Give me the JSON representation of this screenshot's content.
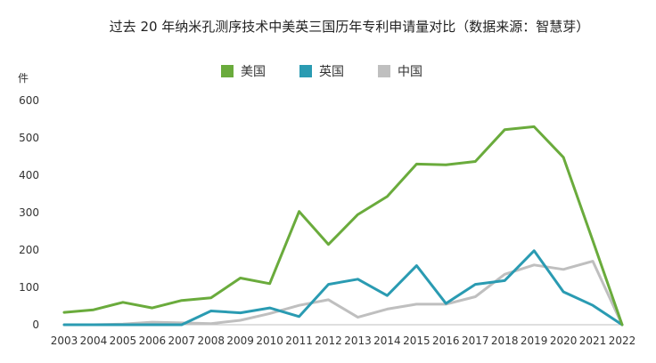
{
  "chart_data": {
    "type": "line",
    "title": "过去 20 年纳米孔测序技术中美英三国历年专利申请量对比（数据来源：智慧芽）",
    "ylabel": "件",
    "ylim": [
      0,
      600
    ],
    "yticks": [
      0,
      100,
      200,
      300,
      400,
      500,
      600
    ],
    "grid": false,
    "legend_position": "top-center",
    "categories": [
      "2003",
      "2004",
      "2005",
      "2006",
      "2007",
      "2008",
      "2009",
      "2010",
      "2011",
      "2012",
      "2013",
      "2014",
      "2015",
      "2016",
      "2017",
      "2018",
      "2019",
      "2020",
      "2021",
      "2022"
    ],
    "series": [
      {
        "name": "美国",
        "color": "#6aab3c",
        "values": [
          33,
          40,
          60,
          45,
          65,
          72,
          125,
          110,
          303,
          215,
          295,
          343,
          430,
          428,
          437,
          522,
          530,
          448,
          225,
          0
        ]
      },
      {
        "name": "英国",
        "color": "#2a9bb2",
        "values": [
          0,
          0,
          0,
          0,
          0,
          37,
          32,
          45,
          22,
          108,
          122,
          78,
          158,
          57,
          108,
          118,
          198,
          88,
          52,
          0
        ]
      },
      {
        "name": "中国",
        "color": "#bfbfbf",
        "values": [
          0,
          0,
          2,
          7,
          5,
          3,
          12,
          30,
          52,
          67,
          20,
          42,
          55,
          55,
          75,
          135,
          160,
          148,
          170,
          0
        ]
      }
    ]
  }
}
